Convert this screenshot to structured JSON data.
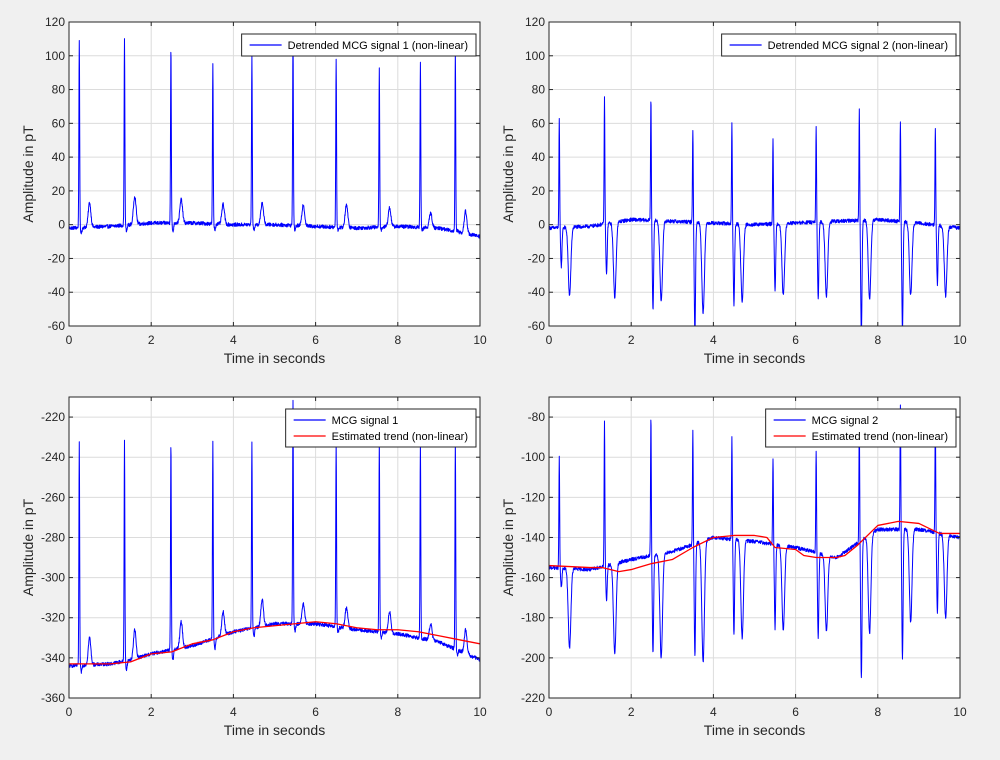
{
  "figure": {
    "background": "#f0f0f0",
    "axes_background": "#ffffff",
    "grid_color": "#dcdcdc",
    "signal_color": "#0000ff",
    "trend_color": "#ff0000"
  },
  "chart_data": [
    {
      "type": "line",
      "title": "",
      "xlabel": "Time in seconds",
      "ylabel": "Amplitude in pT",
      "xlim": [
        0,
        10
      ],
      "ylim": [
        -60,
        120
      ],
      "xticks": [
        0,
        2,
        4,
        6,
        8,
        10
      ],
      "yticks": [
        -60,
        -40,
        -20,
        0,
        20,
        40,
        60,
        80,
        100,
        120
      ],
      "grid": true,
      "legend_position": "top-right",
      "beats": [
        0.25,
        1.35,
        2.48,
        3.5,
        4.45,
        5.45,
        6.5,
        7.55,
        8.55,
        9.4
      ],
      "series": [
        {
          "name": "Detrended MCG signal 1 (non-linear)",
          "color": "#0000ff",
          "baseline": [
            [
              0,
              -2
            ],
            [
              1,
              -1
            ],
            [
              2,
              1
            ],
            [
              3,
              1
            ],
            [
              4,
              0
            ],
            [
              5,
              0
            ],
            [
              6,
              -1
            ],
            [
              7,
              -2
            ],
            [
              8,
              -1
            ],
            [
              9,
              -2
            ],
            [
              10,
              -7
            ]
          ],
          "peak_values": [
            110,
            111,
            105,
            95,
            101,
            113,
            99,
            93,
            97,
            103
          ],
          "qrs_dips": [
            -5,
            -4,
            -4,
            -3,
            -3,
            -3,
            -3,
            -3,
            -3,
            -3
          ],
          "t_wave_values": [
            13,
            17,
            15,
            12,
            13,
            12,
            12,
            10,
            7,
            8
          ]
        }
      ]
    },
    {
      "type": "line",
      "title": "",
      "xlabel": "Time in seconds",
      "ylabel": "Amplitude in pT",
      "xlim": [
        0,
        10
      ],
      "ylim": [
        -60,
        120
      ],
      "xticks": [
        0,
        2,
        4,
        6,
        8,
        10
      ],
      "yticks": [
        -60,
        -40,
        -20,
        0,
        20,
        40,
        60,
        80,
        100,
        120
      ],
      "grid": true,
      "legend_position": "top-right",
      "beats": [
        0.25,
        1.35,
        2.48,
        3.5,
        4.45,
        5.45,
        6.5,
        7.55,
        8.55,
        9.4
      ],
      "series": [
        {
          "name": "Detrended MCG signal 2 (non-linear)",
          "color": "#0000ff",
          "baseline": [
            [
              0,
              -2
            ],
            [
              1,
              -1
            ],
            [
              2,
              3
            ],
            [
              3,
              2
            ],
            [
              4,
              1
            ],
            [
              5,
              0
            ],
            [
              6,
              1
            ],
            [
              7,
              2
            ],
            [
              8,
              3
            ],
            [
              9,
              1
            ],
            [
              10,
              -2
            ]
          ],
          "peak_values": [
            62,
            75,
            75,
            57,
            60,
            52,
            58,
            68,
            62,
            58
          ],
          "qrs_dips": [
            -25,
            -30,
            -50,
            -65,
            -48,
            -40,
            -45,
            -65,
            -62,
            -35
          ],
          "t_wave_values": [
            -42,
            -43,
            -45,
            -52,
            -45,
            -42,
            -42,
            -44,
            -42,
            -42
          ]
        }
      ]
    },
    {
      "type": "line",
      "title": "",
      "xlabel": "Time in seconds",
      "ylabel": "Amplitude in pT",
      "xlim": [
        0,
        10
      ],
      "ylim": [
        -360,
        -210
      ],
      "xticks": [
        0,
        2,
        4,
        6,
        8,
        10
      ],
      "yticks": [
        -360,
        -340,
        -320,
        -300,
        -280,
        -260,
        -240,
        -220
      ],
      "grid": true,
      "legend_position": "top-right",
      "beats": [
        0.25,
        1.35,
        2.48,
        3.5,
        4.45,
        5.45,
        6.5,
        7.55,
        8.55,
        9.4
      ],
      "series": [
        {
          "name": "MCG signal 1",
          "color": "#0000ff",
          "baseline": [
            [
              0,
              -344
            ],
            [
              1,
              -343
            ],
            [
              1.5,
              -341
            ],
            [
              2,
              -338
            ],
            [
              3,
              -334
            ],
            [
              4,
              -327
            ],
            [
              5,
              -323
            ],
            [
              6,
              -323
            ],
            [
              7,
              -326
            ],
            [
              8,
              -328
            ],
            [
              9,
              -332
            ],
            [
              10,
              -341
            ]
          ],
          "peak_values": [
            -233,
            -232,
            -232,
            -232,
            -232,
            -211,
            -232,
            -232,
            -232,
            -232
          ],
          "qrs_dips": [
            -347,
            -346,
            -341,
            -336,
            -330,
            -327,
            -327,
            -330,
            -331,
            -338
          ],
          "t_wave_values": [
            -330,
            -326,
            -322,
            -317,
            -311,
            -313,
            -315,
            -317,
            -323,
            -326
          ]
        },
        {
          "name": "Estimated trend (non-linear)",
          "color": "#ff0000",
          "points": [
            [
              0,
              -343
            ],
            [
              1,
              -343
            ],
            [
              1.5,
              -342
            ],
            [
              2,
              -338
            ],
            [
              2.5,
              -337
            ],
            [
              3,
              -333
            ],
            [
              3.5,
              -331
            ],
            [
              4,
              -327
            ],
            [
              4.5,
              -325
            ],
            [
              5,
              -324
            ],
            [
              5.5,
              -323
            ],
            [
              6,
              -322
            ],
            [
              6.5,
              -323
            ],
            [
              7,
              -325
            ],
            [
              7.5,
              -326
            ],
            [
              8,
              -326
            ],
            [
              8.5,
              -327
            ],
            [
              9,
              -329
            ],
            [
              9.5,
              -331
            ],
            [
              10,
              -333
            ]
          ]
        }
      ]
    },
    {
      "type": "line",
      "title": "",
      "xlabel": "Time in seconds",
      "ylabel": "Amplitude in pT",
      "xlim": [
        0,
        10
      ],
      "ylim": [
        -220,
        -70
      ],
      "xticks": [
        0,
        2,
        4,
        6,
        8,
        10
      ],
      "yticks": [
        -220,
        -200,
        -180,
        -160,
        -140,
        -120,
        -100,
        -80
      ],
      "grid": true,
      "legend_position": "top-right",
      "beats": [
        0.25,
        1.35,
        2.48,
        3.5,
        4.45,
        5.45,
        6.5,
        7.55,
        8.55,
        9.4
      ],
      "series": [
        {
          "name": "MCG signal 2",
          "color": "#0000ff",
          "baseline": [
            [
              0,
              -155
            ],
            [
              1,
              -156
            ],
            [
              2,
              -151
            ],
            [
              3,
              -147
            ],
            [
              4,
              -140
            ],
            [
              5,
              -142
            ],
            [
              6,
              -145
            ],
            [
              7,
              -150
            ],
            [
              8,
              -136
            ],
            [
              9,
              -136
            ],
            [
              10,
              -140
            ]
          ],
          "peak_values": [
            -100,
            -82,
            -79,
            -87,
            -90,
            -100,
            -96,
            -82,
            -73,
            -81
          ],
          "qrs_dips": [
            -165,
            -172,
            -198,
            -200,
            -188,
            -185,
            -190,
            -211,
            -200,
            -178
          ],
          "t_wave_values": [
            -195,
            -198,
            -200,
            -202,
            -190,
            -186,
            -187,
            -188,
            -182,
            -180
          ]
        },
        {
          "name": "Estimated trend (non-linear)",
          "color": "#ff0000",
          "points": [
            [
              0,
              -154
            ],
            [
              1,
              -155
            ],
            [
              1.3,
              -155
            ],
            [
              1.7,
              -157
            ],
            [
              2,
              -156
            ],
            [
              2.5,
              -153
            ],
            [
              3,
              -151
            ],
            [
              3.5,
              -145
            ],
            [
              4,
              -140
            ],
            [
              4.5,
              -139
            ],
            [
              5,
              -139
            ],
            [
              5.3,
              -140
            ],
            [
              5.5,
              -145
            ],
            [
              6,
              -146
            ],
            [
              6.2,
              -149
            ],
            [
              6.5,
              -150
            ],
            [
              7,
              -150
            ],
            [
              7.2,
              -149
            ],
            [
              7.5,
              -144
            ],
            [
              8,
              -134
            ],
            [
              8.5,
              -132
            ],
            [
              9,
              -133
            ],
            [
              9.5,
              -138
            ],
            [
              10,
              -138
            ]
          ]
        }
      ]
    }
  ]
}
